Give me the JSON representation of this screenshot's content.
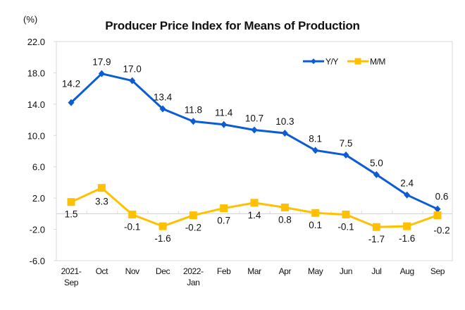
{
  "chart_data": {
    "type": "line",
    "title": "Producer Price Index for Means of Production",
    "ylabel": "(%)",
    "xlabel": "",
    "ylim": [
      -6.0,
      22.0
    ],
    "yticks": [
      22.0,
      18.0,
      14.0,
      10.0,
      6.0,
      2.0,
      -2.0,
      -6.0
    ],
    "ytick_labels": [
      "22.0",
      "18.0",
      "14.0",
      "10.0",
      "6.0",
      "2.0",
      "-2.0",
      "-6.0"
    ],
    "categories": [
      [
        "2021-",
        "Sep"
      ],
      [
        "Oct"
      ],
      [
        "Nov"
      ],
      [
        "Dec"
      ],
      [
        "2022-",
        "Jan"
      ],
      [
        "Feb"
      ],
      [
        "Mar"
      ],
      [
        "Apr"
      ],
      [
        "May"
      ],
      [
        "Jun"
      ],
      [
        "Jul"
      ],
      [
        "Aug"
      ],
      [
        "Sep"
      ]
    ],
    "legend_position": "top-right",
    "grid": false,
    "series": [
      {
        "name": "Y/Y",
        "color": "#0b5cd5",
        "marker": "diamond",
        "values": [
          14.2,
          17.9,
          17.0,
          13.4,
          11.8,
          11.4,
          10.7,
          10.3,
          8.1,
          7.5,
          5.0,
          2.4,
          0.6
        ],
        "labels": [
          "14.2",
          "17.9",
          "17.0",
          "13.4",
          "11.8",
          "11.4",
          "10.7",
          "10.3",
          "8.1",
          "7.5",
          "5.0",
          "2.4",
          "0.6"
        ]
      },
      {
        "name": "M/M",
        "color": "#ffc000",
        "marker": "square",
        "values": [
          1.5,
          3.3,
          -0.1,
          -1.6,
          -0.2,
          0.7,
          1.4,
          0.8,
          0.1,
          -0.1,
          -1.7,
          -1.6,
          -0.2
        ],
        "labels": [
          "1.5",
          "3.3",
          "-0.1",
          "-1.6",
          "-0.2",
          "0.7",
          "1.4",
          "0.8",
          "0.1",
          "-0.1",
          "-1.7",
          "-1.6",
          "-0.2"
        ]
      }
    ]
  }
}
